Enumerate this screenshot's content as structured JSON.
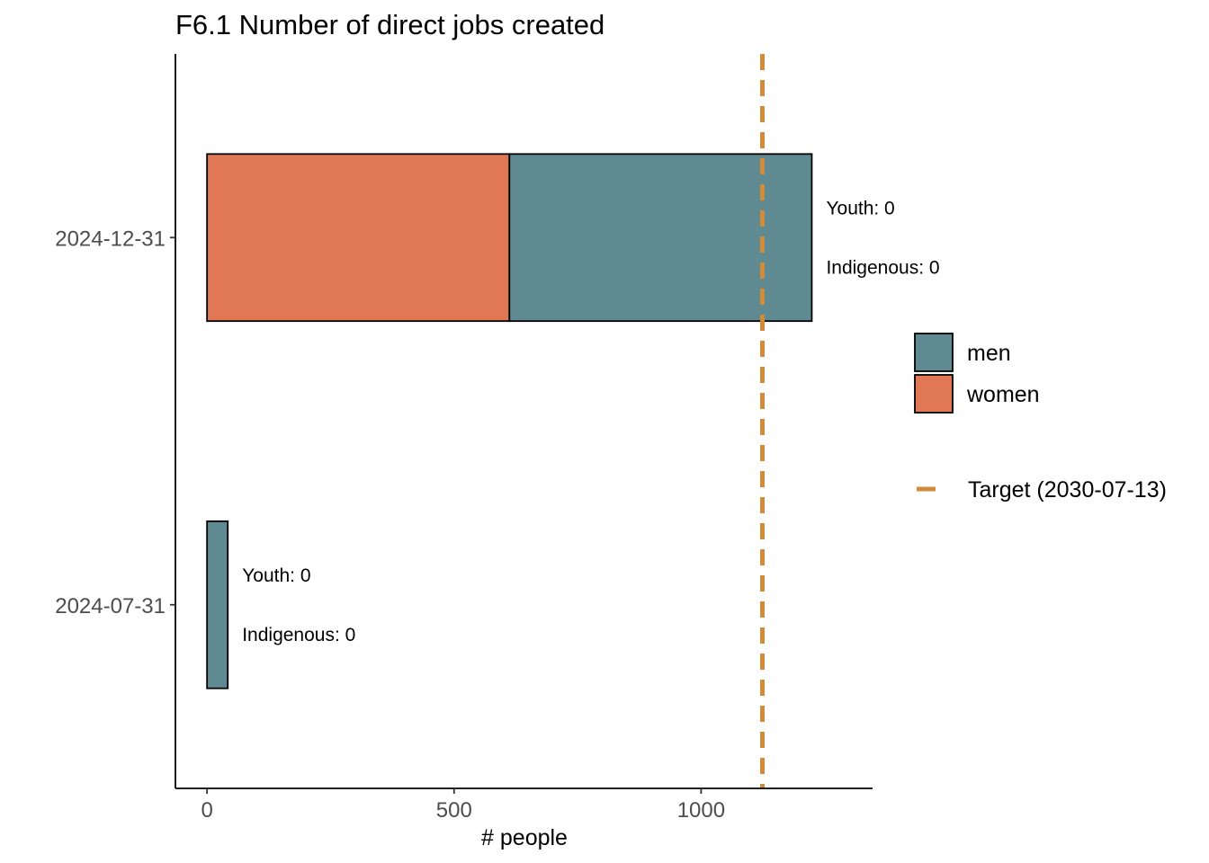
{
  "chart_data": {
    "type": "bar",
    "orientation": "horizontal",
    "stacked": true,
    "title": "F6.1 Number of direct jobs created",
    "xlabel": "# people",
    "ylabel": "",
    "xlim": [
      -64,
      1347
    ],
    "xticks": [
      0,
      500,
      1000
    ],
    "categories": [
      "2024-07-31",
      "2024-12-31"
    ],
    "series": [
      {
        "name": "women",
        "color": "#E07856",
        "values": [
          0,
          612
        ]
      },
      {
        "name": "men",
        "color": "#5F8A92",
        "values": [
          42,
          612
        ]
      }
    ],
    "annotations": [
      {
        "category": "2024-07-31",
        "lines": [
          "Youth: 0",
          "Indigenous: 0"
        ]
      },
      {
        "category": "2024-12-31",
        "lines": [
          "Youth: 0",
          "Indigenous: 0"
        ]
      }
    ],
    "target": {
      "value": 1124,
      "label": "Target (2030-07-13)",
      "color": "#D08C3A",
      "style": "dashed"
    },
    "grid": false,
    "legend_position": "right",
    "legend_order": [
      "men",
      "women"
    ]
  }
}
